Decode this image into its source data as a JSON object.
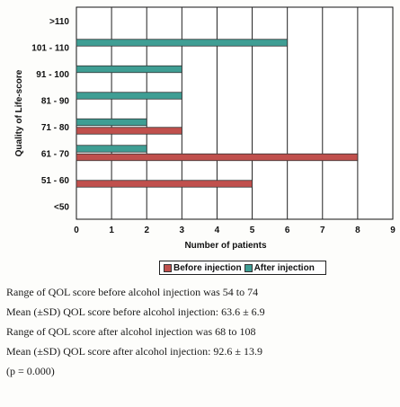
{
  "chart_data": {
    "type": "bar",
    "orientation": "horizontal",
    "categories": [
      "<50",
      "51 - 60",
      "61 - 70",
      "71 - 80",
      "81 - 90",
      "91 - 100",
      "101 - 110",
      ">110"
    ],
    "series": [
      {
        "name": "Before injection",
        "color": "#c0504d",
        "values": [
          0,
          5,
          8,
          3,
          0,
          0,
          0,
          0
        ]
      },
      {
        "name": "After injection",
        "color": "#3f9e94",
        "values": [
          0,
          0,
          2,
          2,
          3,
          3,
          6,
          0
        ]
      }
    ],
    "xlabel": "Number of patients",
    "ylabel": "Quality of Life-score",
    "xlim": [
      0,
      9
    ],
    "xticks": [
      "0",
      "1",
      "2",
      "3",
      "4",
      "5",
      "6",
      "7",
      "8",
      "9"
    ],
    "grid": "vertical",
    "legend_position": "bottom"
  },
  "notes": [
    "Range of QOL score before alcohol injection was 54 to 74",
    "Mean (±SD) QOL score before alcohol injection:  63.6 ± 6.9",
    "Range of QOL score after alcohol injection was 68 to 108",
    "Mean (±SD) QOL score after alcohol injection: 92.6 ± 13.9",
    " (p = 0.000)"
  ]
}
